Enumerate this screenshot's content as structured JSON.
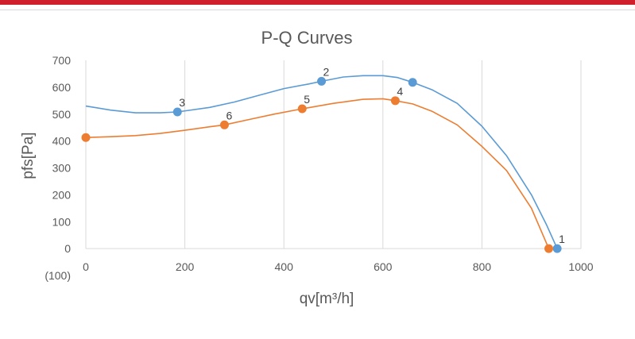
{
  "chart_data": {
    "type": "line",
    "title": "P-Q Curves",
    "xlabel": "qv[m³/h]",
    "ylabel": "pfs[Pa]",
    "xlim": [
      0,
      1000
    ],
    "ylim": [
      -100,
      700
    ],
    "x_ticks": [
      0,
      200,
      400,
      600,
      800,
      1000
    ],
    "y_ticks": [
      -100,
      0,
      100,
      200,
      300,
      400,
      500,
      600,
      700
    ],
    "x_tick_labels": [
      "0",
      "200",
      "400",
      "600",
      "800",
      "1000"
    ],
    "y_tick_labels": [
      "(100)",
      "0",
      "100",
      "200",
      "300",
      "400",
      "500",
      "600",
      "700"
    ],
    "grid": "vertical",
    "colors": {
      "series_blue": "#5b9bd5",
      "series_orange": "#ed7d31",
      "grid": "#d9d9d9",
      "text": "#595959"
    },
    "series": [
      {
        "color": "#5b9bd5",
        "curve": [
          [
            0,
            530
          ],
          [
            50,
            515
          ],
          [
            100,
            505
          ],
          [
            150,
            505
          ],
          [
            185,
            508
          ],
          [
            250,
            525
          ],
          [
            300,
            545
          ],
          [
            350,
            570
          ],
          [
            400,
            595
          ],
          [
            450,
            612
          ],
          [
            476,
            622
          ],
          [
            520,
            638
          ],
          [
            560,
            643
          ],
          [
            600,
            643
          ],
          [
            630,
            636
          ],
          [
            660,
            618
          ],
          [
            700,
            590
          ],
          [
            750,
            540
          ],
          [
            800,
            455
          ],
          [
            850,
            345
          ],
          [
            900,
            200
          ],
          [
            930,
            90
          ],
          [
            952,
            0
          ]
        ],
        "markers": [
          {
            "x": 952,
            "y": 0,
            "label": "1"
          },
          {
            "x": 476,
            "y": 622,
            "label": "2"
          },
          {
            "x": 185,
            "y": 508,
            "label": "3"
          },
          {
            "x": 660,
            "y": 618,
            "label": ""
          }
        ]
      },
      {
        "color": "#ed7d31",
        "curve": [
          [
            0,
            413
          ],
          [
            50,
            416
          ],
          [
            100,
            420
          ],
          [
            150,
            428
          ],
          [
            200,
            440
          ],
          [
            250,
            453
          ],
          [
            280,
            460
          ],
          [
            330,
            480
          ],
          [
            380,
            500
          ],
          [
            437,
            520
          ],
          [
            500,
            540
          ],
          [
            560,
            555
          ],
          [
            600,
            557
          ],
          [
            625,
            550
          ],
          [
            660,
            538
          ],
          [
            700,
            510
          ],
          [
            750,
            460
          ],
          [
            800,
            380
          ],
          [
            850,
            290
          ],
          [
            900,
            150
          ],
          [
            935,
            0
          ]
        ],
        "markers": [
          {
            "x": 935,
            "y": 0,
            "label": ""
          },
          {
            "x": 625,
            "y": 550,
            "label": "4"
          },
          {
            "x": 437,
            "y": 520,
            "label": "5"
          },
          {
            "x": 280,
            "y": 460,
            "label": "6"
          },
          {
            "x": 0,
            "y": 413,
            "label": ""
          }
        ]
      }
    ]
  }
}
